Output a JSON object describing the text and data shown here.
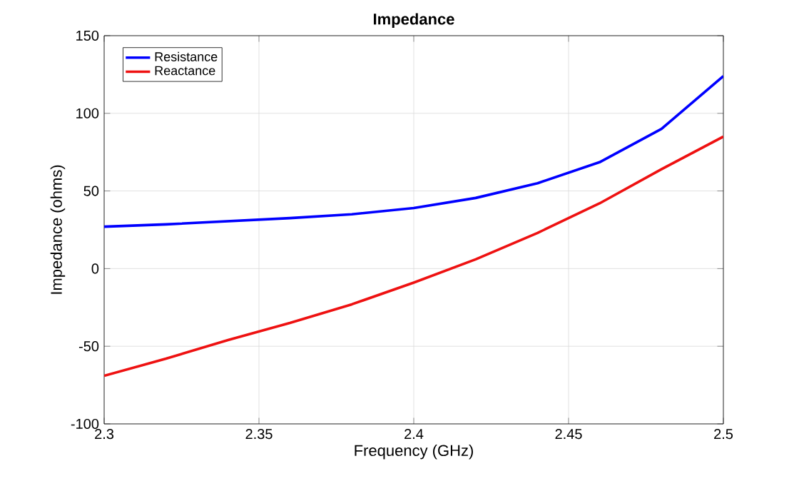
{
  "chart_data": {
    "type": "line",
    "title": "Impedance",
    "xlabel": "Frequency (GHz)",
    "ylabel": "Impedance (ohms)",
    "x": [
      2.3,
      2.32,
      2.34,
      2.36,
      2.38,
      2.4,
      2.42,
      2.44,
      2.46,
      2.48,
      2.5
    ],
    "series": [
      {
        "name": "Resistance",
        "color": "#0000ff",
        "values": [
          27,
          28.5,
          30.5,
          32.5,
          35,
          39,
          45.5,
          55,
          68.5,
          90,
          124
        ]
      },
      {
        "name": "Reactance",
        "color": "#ee1111",
        "values": [
          -69,
          -58,
          -46,
          -35,
          -23,
          -9,
          6,
          23,
          42,
          64,
          85
        ]
      }
    ],
    "xlim": [
      2.3,
      2.5
    ],
    "ylim": [
      -100,
      150
    ],
    "xticks": [
      2.3,
      2.35,
      2.4,
      2.45,
      2.5
    ],
    "yticks": [
      -100,
      -50,
      0,
      50,
      100,
      150
    ],
    "grid": true,
    "legend": "top left",
    "marker": "none",
    "line_style": "solid"
  }
}
